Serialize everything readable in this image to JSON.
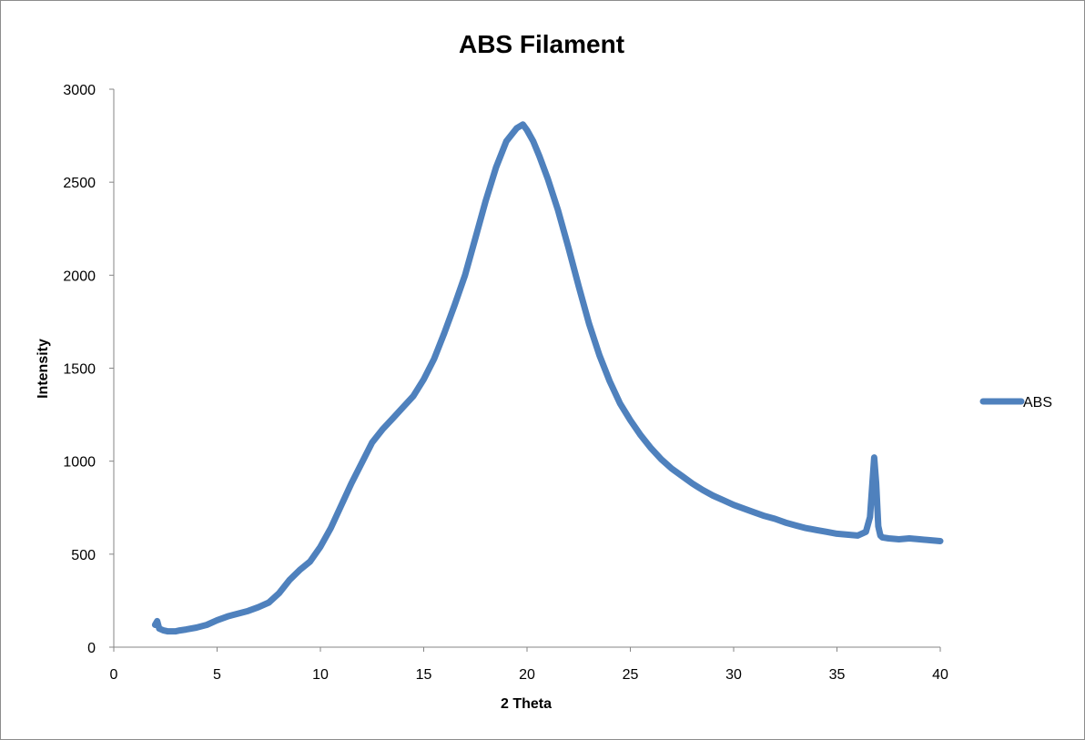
{
  "chart_data": {
    "type": "line",
    "title": "ABS Filament",
    "xlabel": "2 Theta",
    "ylabel": "Intensity",
    "xlim": [
      0,
      40
    ],
    "ylim": [
      0,
      3000
    ],
    "xticks": [
      "0",
      "5",
      "10",
      "15",
      "20",
      "25",
      "30",
      "35",
      "40"
    ],
    "yticks": [
      "0",
      "500",
      "1000",
      "1500",
      "2000",
      "2500",
      "3000"
    ],
    "grid": false,
    "legend": "right",
    "series": [
      {
        "name": "ABS",
        "color": "#4f81bd",
        "x": [
          2.0,
          2.1,
          2.2,
          2.4,
          2.6,
          2.8,
          3.0,
          3.2,
          3.5,
          4.0,
          4.5,
          5.0,
          5.5,
          6.0,
          6.5,
          7.0,
          7.5,
          8.0,
          8.5,
          9.0,
          9.5,
          10.0,
          10.5,
          11.0,
          11.5,
          12.0,
          12.5,
          13.0,
          13.5,
          14.0,
          14.5,
          15.0,
          15.5,
          16.0,
          16.5,
          17.0,
          17.5,
          18.0,
          18.5,
          19.0,
          19.5,
          19.8,
          20.0,
          20.3,
          20.6,
          21.0,
          21.5,
          22.0,
          22.5,
          23.0,
          23.5,
          24.0,
          24.5,
          25.0,
          25.5,
          26.0,
          26.5,
          27.0,
          27.5,
          28.0,
          28.5,
          29.0,
          29.5,
          30.0,
          30.5,
          31.0,
          31.5,
          32.0,
          32.5,
          33.0,
          33.5,
          34.0,
          34.5,
          35.0,
          35.5,
          36.0,
          36.4,
          36.6,
          36.7,
          36.8,
          36.9,
          37.0,
          37.1,
          37.2,
          37.5,
          38.0,
          38.5,
          39.0,
          39.5,
          40.0
        ],
        "values": [
          120,
          140,
          100,
          90,
          85,
          85,
          85,
          90,
          95,
          105,
          120,
          145,
          165,
          180,
          195,
          215,
          240,
          290,
          360,
          415,
          460,
          540,
          640,
          760,
          880,
          990,
          1100,
          1170,
          1230,
          1290,
          1350,
          1440,
          1550,
          1690,
          1840,
          2000,
          2200,
          2400,
          2580,
          2720,
          2790,
          2810,
          2780,
          2720,
          2640,
          2520,
          2350,
          2150,
          1940,
          1740,
          1570,
          1430,
          1310,
          1220,
          1140,
          1070,
          1010,
          960,
          920,
          880,
          845,
          815,
          790,
          765,
          745,
          725,
          705,
          690,
          670,
          655,
          640,
          630,
          620,
          610,
          605,
          600,
          620,
          700,
          860,
          1020,
          880,
          650,
          600,
          590,
          585,
          580,
          585,
          580,
          575,
          570
        ]
      }
    ]
  }
}
